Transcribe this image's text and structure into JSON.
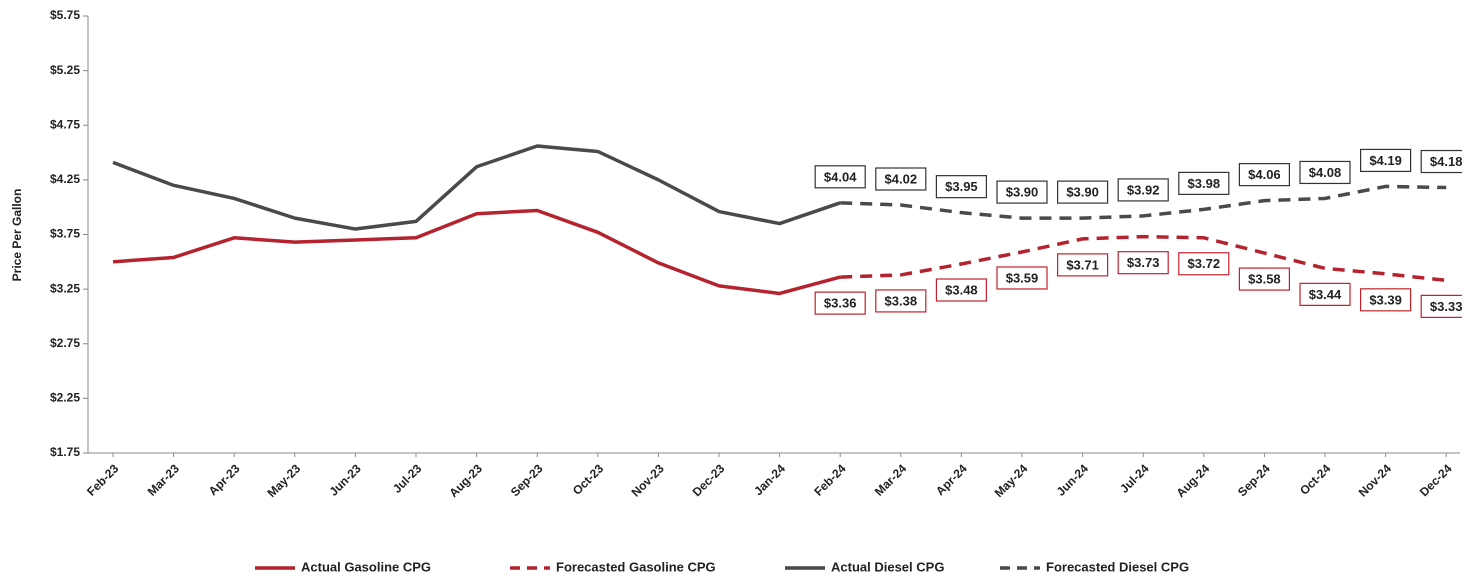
{
  "chart_data": {
    "type": "line",
    "y_label": "Price Per Gallon",
    "categories": [
      "Feb-23",
      "Mar-23",
      "Apr-23",
      "May-23",
      "Jun-23",
      "Jul-23",
      "Aug-23",
      "Sep-23",
      "Oct-23",
      "Nov-23",
      "Dec-23",
      "Jan-24",
      "Feb-24",
      "Mar-24",
      "Apr-24",
      "May-24",
      "Jun-24",
      "Jul-24",
      "Aug-24",
      "Sep-24",
      "Oct-24",
      "Nov-24",
      "Dec-24"
    ],
    "series": [
      {
        "name": "Actual Gasoline CPG",
        "color": "#b5232f",
        "dashed": false,
        "values": [
          3.5,
          3.54,
          3.72,
          3.68,
          3.7,
          3.72,
          3.94,
          3.97,
          3.77,
          3.49,
          3.28,
          3.21,
          3.36,
          null,
          null,
          null,
          null,
          null,
          null,
          null,
          null,
          null,
          null
        ]
      },
      {
        "name": "Forecasted Gasoline CPG",
        "color": "#b5232f",
        "dashed": true,
        "label_side": "below",
        "values": [
          null,
          null,
          null,
          null,
          null,
          null,
          null,
          null,
          null,
          null,
          null,
          null,
          3.36,
          3.38,
          3.48,
          3.59,
          3.71,
          3.73,
          3.72,
          3.58,
          3.44,
          3.39,
          3.33
        ],
        "value_labels": [
          null,
          null,
          null,
          null,
          null,
          null,
          null,
          null,
          null,
          null,
          null,
          null,
          "$3.36",
          "$3.38",
          "$3.48",
          "$3.59",
          "$3.71",
          "$3.73",
          "$3.72",
          "$3.58",
          "$3.44",
          "$3.39",
          "$3.33"
        ]
      },
      {
        "name": "Actual Diesel CPG",
        "color": "#4a4a4a",
        "dashed": false,
        "values": [
          4.41,
          4.2,
          4.08,
          3.9,
          3.8,
          3.87,
          4.37,
          4.56,
          4.51,
          4.25,
          3.96,
          3.85,
          4.04,
          null,
          null,
          null,
          null,
          null,
          null,
          null,
          null,
          null,
          null
        ]
      },
      {
        "name": "Forecasted Diesel CPG",
        "color": "#4a4a4a",
        "dashed": true,
        "label_side": "above",
        "values": [
          null,
          null,
          null,
          null,
          null,
          null,
          null,
          null,
          null,
          null,
          null,
          null,
          4.04,
          4.02,
          3.95,
          3.9,
          3.9,
          3.92,
          3.98,
          4.06,
          4.08,
          4.19,
          4.18
        ],
        "value_labels": [
          null,
          null,
          null,
          null,
          null,
          null,
          null,
          null,
          null,
          null,
          null,
          null,
          "$4.04",
          "$4.02",
          "$3.95",
          "$3.90",
          "$3.90",
          "$3.92",
          "$3.98",
          "$4.06",
          "$4.08",
          "$4.19",
          "$4.18"
        ]
      }
    ],
    "ylim": [
      1.75,
      5.75
    ],
    "yticks": [
      {
        "value": 1.75,
        "label": "$1.75"
      },
      {
        "value": 2.25,
        "label": "$2.25"
      },
      {
        "value": 2.75,
        "label": "$2.75"
      },
      {
        "value": 3.25,
        "label": "$3.25"
      },
      {
        "value": 3.75,
        "label": "$3.75"
      },
      {
        "value": 4.25,
        "label": "$4.25"
      },
      {
        "value": 4.75,
        "label": "$4.75"
      },
      {
        "value": 5.25,
        "label": "$5.25"
      },
      {
        "value": 5.75,
        "label": "$5.75"
      }
    ],
    "grid": false,
    "legend": "bottom"
  }
}
